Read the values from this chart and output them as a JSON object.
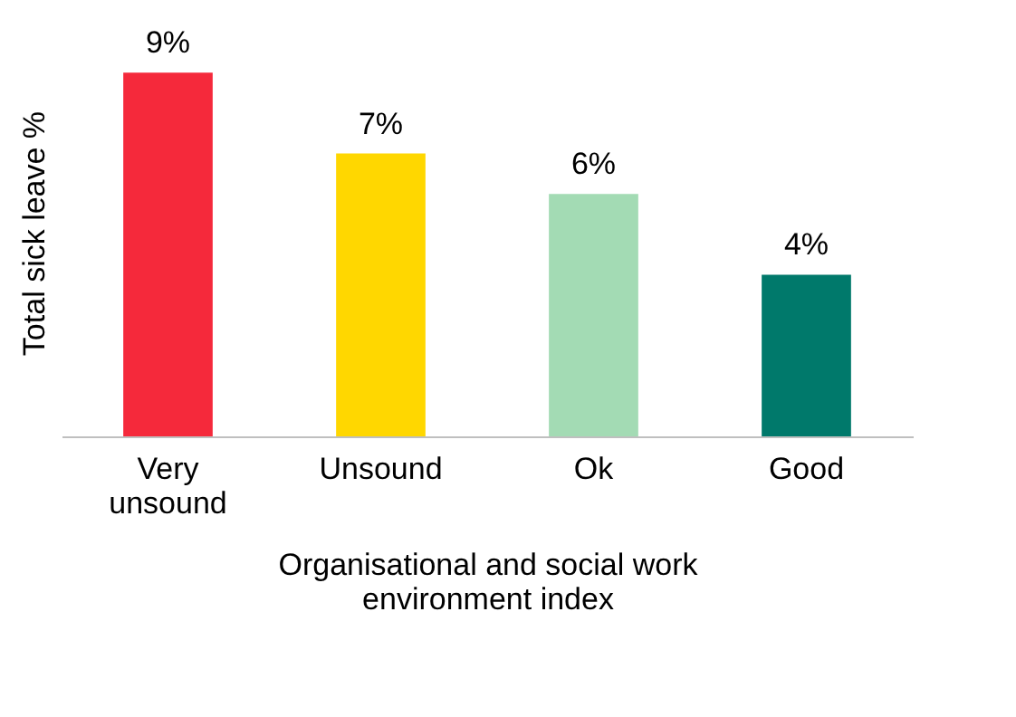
{
  "chart_data": {
    "type": "bar",
    "xlabel": "Organisational and social work environment index",
    "ylabel": "Total sick leave %",
    "categories": [
      "Very unsound",
      "Unsound",
      "Ok",
      "Good"
    ],
    "values": [
      9,
      7,
      6,
      4
    ],
    "colors": [
      "#f5293b",
      "#ffd700",
      "#a3dbb4",
      "#00796b"
    ],
    "value_labels": [
      "9%",
      "7%",
      "6%",
      "4%"
    ],
    "grid": false,
    "legend": false
  }
}
